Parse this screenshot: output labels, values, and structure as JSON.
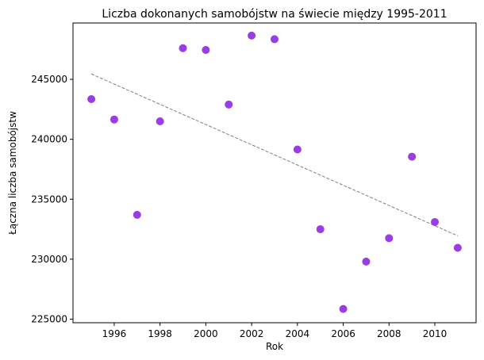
{
  "chart_data": {
    "type": "scatter",
    "title": "Liczba dokonanych samobójstw na świecie między 1995-2011",
    "xlabel": "Rok",
    "ylabel": "Łączna liczba samobójstw",
    "xlim": [
      1994.2,
      2011.8
    ],
    "ylim": [
      224700,
      249700
    ],
    "xticks": [
      1996,
      1998,
      2000,
      2002,
      2004,
      2006,
      2008,
      2010
    ],
    "yticks": [
      225000,
      230000,
      235000,
      240000,
      245000
    ],
    "grid": false,
    "point_color": "#9b3de6",
    "trend_color": "#7f7f7f",
    "points": [
      {
        "x": 1995,
        "y": 243350
      },
      {
        "x": 1996,
        "y": 241650
      },
      {
        "x": 1997,
        "y": 233700
      },
      {
        "x": 1998,
        "y": 241500
      },
      {
        "x": 1999,
        "y": 247600
      },
      {
        "x": 2000,
        "y": 247450
      },
      {
        "x": 2001,
        "y": 242900
      },
      {
        "x": 2002,
        "y": 248650
      },
      {
        "x": 2003,
        "y": 248350
      },
      {
        "x": 2004,
        "y": 239150
      },
      {
        "x": 2005,
        "y": 232500
      },
      {
        "x": 2006,
        "y": 225850
      },
      {
        "x": 2007,
        "y": 229800
      },
      {
        "x": 2008,
        "y": 231750
      },
      {
        "x": 2009,
        "y": 238550
      },
      {
        "x": 2010,
        "y": 233100
      },
      {
        "x": 2011,
        "y": 230950
      }
    ],
    "trendline": {
      "x": [
        1995,
        2011
      ],
      "y": [
        245450,
        231950
      ]
    }
  }
}
